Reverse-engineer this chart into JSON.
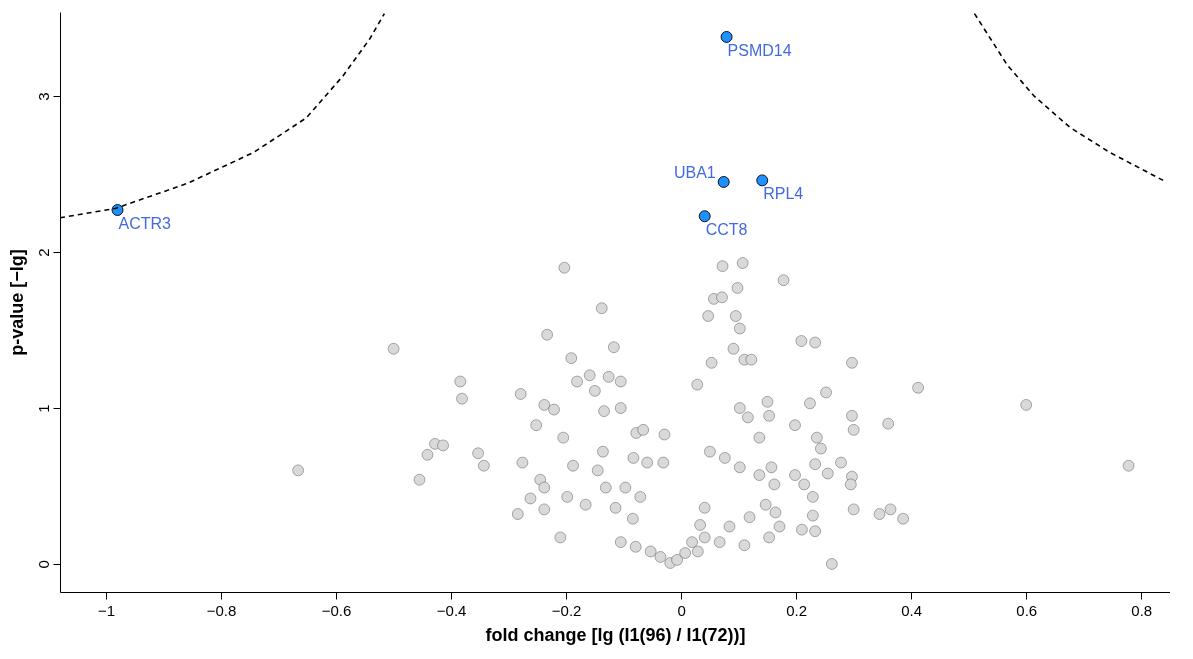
{
  "chart_data": {
    "type": "scatter",
    "xlabel": "fold change [lg (I1(96) / I1(72))]",
    "ylabel": "p-value [−lg]",
    "xlim": [
      -1.08,
      0.85
    ],
    "ylim": [
      -0.18,
      3.54
    ],
    "xticks": [
      {
        "value": -1,
        "label": "−1"
      },
      {
        "value": -0.8,
        "label": "−0.8"
      },
      {
        "value": -0.6,
        "label": "−0.6"
      },
      {
        "value": -0.4,
        "label": "−0.4"
      },
      {
        "value": -0.2,
        "label": "−0.2"
      },
      0,
      0.2,
      0.4,
      0.6,
      0.8
    ],
    "yticks": [
      0,
      1,
      2,
      3
    ],
    "grid": false,
    "marker": "circle",
    "series": [
      {
        "color": "#d9d9d9",
        "x": [
          -0.666,
          -0.5,
          -0.455,
          -0.441,
          -0.428,
          -0.414,
          -0.384,
          -0.381,
          -0.353,
          -0.343,
          -0.284,
          -0.279,
          -0.276,
          -0.262,
          -0.252,
          -0.245,
          -0.238,
          -0.233,
          -0.238,
          -0.238,
          -0.221,
          -0.203,
          -0.21,
          -0.191,
          -0.205,
          -0.198,
          -0.188,
          -0.181,
          -0.166,
          -0.159,
          -0.15,
          -0.138,
          -0.117,
          -0.126,
          -0.105,
          -0.134,
          -0.105,
          -0.145,
          -0.136,
          -0.083,
          -0.078,
          -0.066,
          -0.029,
          -0.059,
          -0.031,
          -0.084,
          -0.105,
          -0.079,
          -0.053,
          -0.036,
          -0.019,
          -0.007,
          0.007,
          0.019,
          0.033,
          0.041,
          -0.071,
          -0.097,
          -0.114,
          -0.131,
          0.028,
          0.072,
          0.107,
          0.178,
          0.098,
          0.057,
          0.071,
          0.047,
          0.095,
          0.102,
          0.091,
          0.053,
          0.11,
          0.122,
          0.209,
          0.233,
          0.297,
          0.412,
          0.6,
          0.778,
          0.252,
          0.224,
          0.198,
          0.297,
          0.3,
          0.36,
          0.236,
          0.243,
          0.278,
          0.233,
          0.255,
          0.198,
          0.214,
          0.229,
          0.297,
          0.295,
          0.3,
          0.345,
          0.364,
          0.386,
          0.229,
          0.21,
          0.233,
          0.262,
          0.116,
          0.15,
          0.102,
          0.153,
          0.05,
          0.076,
          0.102,
          0.136,
          0.162,
          0.147,
          0.171,
          0.119,
          0.084,
          0.067,
          0.11,
          0.041,
          0.029,
          0.136,
          0.157,
          0.164,
          0.153
        ],
        "values": [
          0.6,
          1.38,
          0.54,
          0.7,
          0.77,
          0.76,
          1.17,
          1.06,
          0.71,
          0.63,
          0.32,
          1.09,
          0.65,
          0.42,
          0.89,
          0.54,
          0.49,
          1.47,
          1.02,
          0.35,
          0.99,
          1.9,
          0.17,
          1.32,
          0.81,
          0.43,
          0.63,
          1.17,
          0.38,
          1.21,
          1.11,
          1.64,
          1.39,
          1.2,
          1.17,
          0.98,
          1.0,
          0.6,
          0.72,
          0.68,
          0.84,
          0.86,
          0.83,
          0.65,
          0.65,
          0.29,
          0.14,
          0.11,
          0.08,
          0.045,
          0.006,
          0.026,
          0.07,
          0.14,
          0.25,
          0.36,
          0.43,
          0.49,
          0.36,
          0.49,
          1.15,
          1.91,
          1.93,
          1.82,
          1.77,
          1.7,
          1.71,
          1.59,
          1.59,
          1.51,
          1.38,
          1.29,
          1.31,
          1.31,
          1.43,
          1.42,
          1.29,
          1.13,
          1.02,
          0.63,
          1.1,
          1.03,
          0.89,
          0.95,
          0.86,
          0.9,
          0.81,
          0.74,
          0.65,
          0.64,
          0.58,
          0.57,
          0.51,
          0.43,
          0.56,
          0.51,
          0.35,
          0.32,
          0.35,
          0.29,
          0.31,
          0.22,
          0.21,
          0.0,
          0.94,
          1.04,
          1.0,
          0.95,
          0.72,
          0.68,
          0.62,
          0.57,
          0.51,
          0.38,
          0.24,
          0.3,
          0.24,
          0.14,
          0.12,
          0.17,
          0.08,
          0.81,
          0.62,
          0.33,
          0.17
        ]
      },
      {
        "color": "#1e90ff",
        "x": [
          -0.98,
          0.079,
          0.074,
          0.141,
          0.041
        ],
        "values": [
          2.27,
          3.38,
          2.45,
          2.46,
          2.23
        ]
      },
      {
        "type": "line",
        "color": "#000000",
        "line_style": "dashed",
        "marker": "none",
        "x": [
          -1.08,
          -0.984,
          -0.859,
          -0.743,
          -0.652,
          -0.588,
          -0.541,
          -0.516
        ],
        "values": [
          2.22,
          2.28,
          2.44,
          2.64,
          2.86,
          3.13,
          3.37,
          3.53
        ]
      },
      {
        "type": "line",
        "color": "#000000",
        "line_style": "dashed",
        "marker": "none",
        "x": [
          0.51,
          0.567,
          0.614,
          0.676,
          0.745,
          0.838
        ],
        "values": [
          3.53,
          3.2,
          3.0,
          2.8,
          2.64,
          2.46
        ]
      }
    ],
    "annotations": [
      {
        "text": "ACTR3",
        "x": -0.98,
        "y": 2.27
      },
      {
        "text": "PSMD14",
        "x": 0.079,
        "y": 3.38
      },
      {
        "text": "UBA1",
        "x": 0.074,
        "y": 2.45
      },
      {
        "text": "RPL4",
        "x": 0.141,
        "y": 2.46
      },
      {
        "text": "CCT8",
        "x": 0.041,
        "y": 2.23
      }
    ]
  }
}
